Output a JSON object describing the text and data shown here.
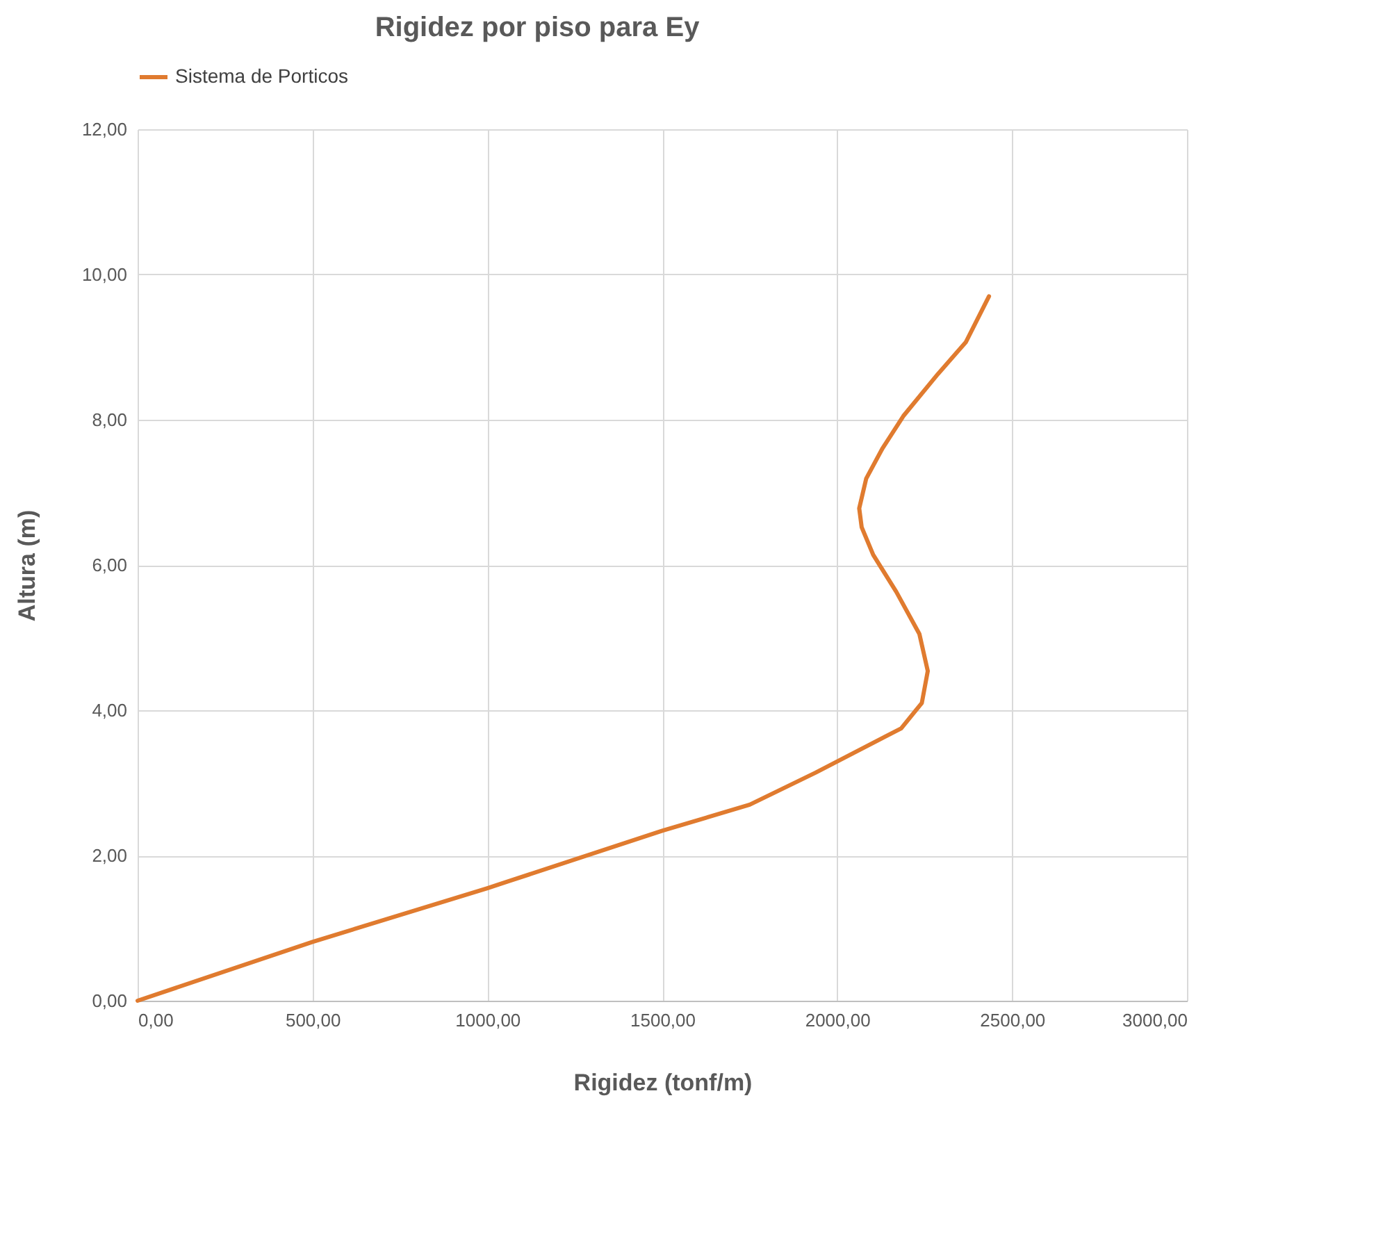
{
  "chart_data": {
    "type": "line",
    "title": "Rigidez por piso para Ey",
    "xlabel": "Rigidez (tonf/m)",
    "ylabel": "Altura (m)",
    "series": [
      {
        "name": "Sistema de Porticos",
        "color": "#e07b2f",
        "x": [
          0,
          500,
          1000,
          1500,
          1750,
          1938,
          2183,
          2242,
          2259,
          2235,
          2169,
          2103,
          2070,
          2063,
          2083,
          2130,
          2189,
          2288,
          2368,
          2434
        ],
        "values": [
          0,
          0.81,
          1.55,
          2.34,
          2.7,
          3.14,
          3.75,
          4.1,
          4.54,
          5.05,
          5.63,
          6.14,
          6.52,
          6.78,
          7.19,
          7.61,
          8.05,
          8.63,
          9.07,
          9.7
        ]
      }
    ],
    "xlim": [
      0,
      3000
    ],
    "xticks": [
      {
        "value": 0,
        "label": "0,00"
      },
      {
        "value": 500,
        "label": "500,00"
      },
      {
        "value": 1000,
        "label": "1000,00"
      },
      {
        "value": 1500,
        "label": "1500,00"
      },
      {
        "value": 2000,
        "label": "2000,00"
      },
      {
        "value": 2500,
        "label": "2500,00"
      },
      {
        "value": 3000,
        "label": "3000,00"
      }
    ],
    "ylim": [
      0,
      12
    ],
    "yticks": [
      {
        "value": 0,
        "label": "0,00"
      },
      {
        "value": 2,
        "label": "2,00"
      },
      {
        "value": 4,
        "label": "4,00"
      },
      {
        "value": 6,
        "label": "6,00"
      },
      {
        "value": 8,
        "label": "8,00"
      },
      {
        "value": 10,
        "label": "10,00"
      },
      {
        "value": 12,
        "label": "12,00"
      }
    ],
    "grid": true,
    "legend": "top",
    "line_style": "solid",
    "marker": "none"
  }
}
